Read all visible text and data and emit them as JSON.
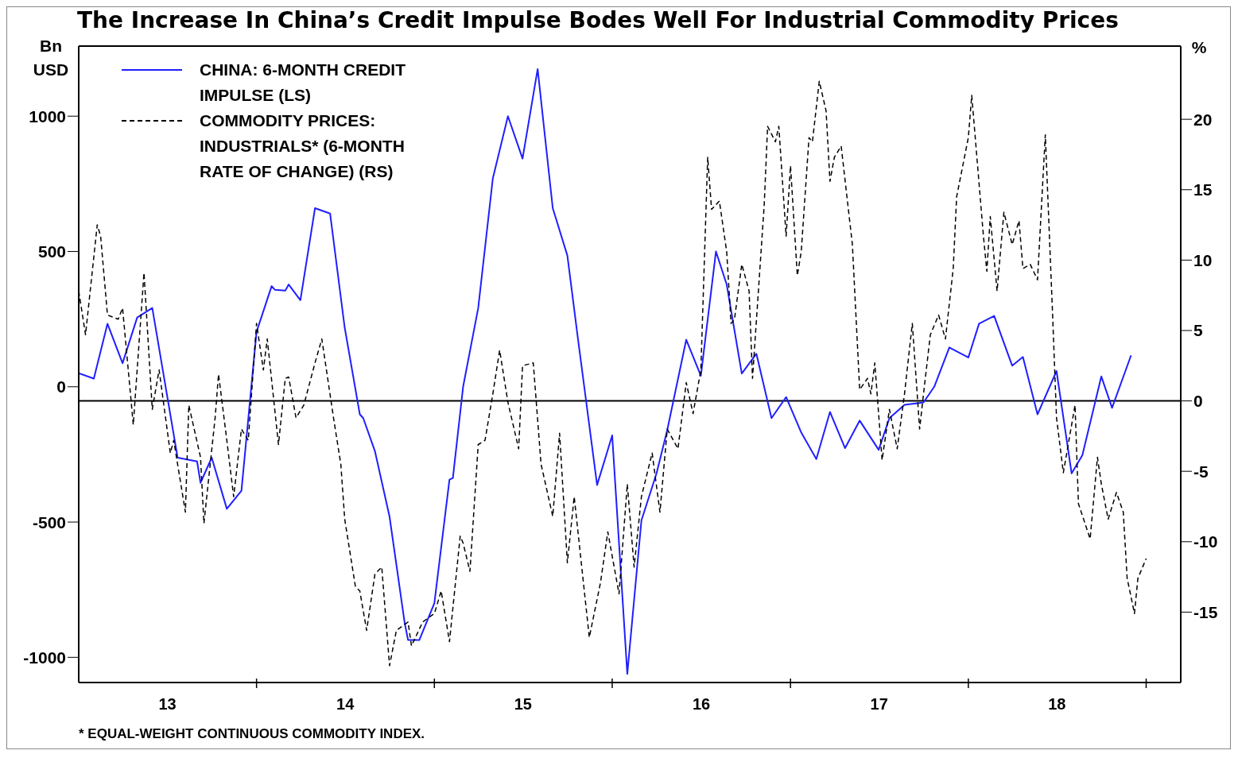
{
  "chart_data": {
    "type": "line",
    "title": "The Increase In China’s Credit Impulse Bodes Well For Industrial Commodity Prices",
    "ylabel": "Bn USD",
    "y2label": "%",
    "annotations": [
      "* EQUAL-WEIGHT CONTINUOUS COMMODITY INDEX."
    ],
    "xlim": [
      "2013-01-01",
      "2019-03-13"
    ],
    "xticks": [
      {
        "value": "2013-07-02",
        "label": "13"
      },
      {
        "value": "2014-01-01",
        "label": null
      },
      {
        "value": "2014-07-02",
        "label": "14"
      },
      {
        "value": "2015-01-01",
        "label": null
      },
      {
        "value": "2015-07-02",
        "label": "15"
      },
      {
        "value": "2016-01-01",
        "label": null
      },
      {
        "value": "2016-07-02",
        "label": "16"
      },
      {
        "value": "2017-01-01",
        "label": null
      },
      {
        "value": "2017-07-02",
        "label": "17"
      },
      {
        "value": "2018-01-01",
        "label": null
      },
      {
        "value": "2018-07-02",
        "label": "18"
      },
      {
        "value": "2019-01-01",
        "label": null
      }
    ],
    "ylim": [
      -1093,
      1259
    ],
    "yticks": [
      -1000,
      -500,
      0,
      500,
      1000
    ],
    "y2lim": [
      -20,
      25.2
    ],
    "y2ticks": [
      -15,
      -10,
      -5,
      0,
      5,
      10,
      15,
      20
    ],
    "ref_lines": [
      {
        "axis": "y2",
        "value": 0,
        "color": "#000000"
      }
    ],
    "legend": "top left",
    "marker": "none",
    "grid": false,
    "series": [
      {
        "name": "CHINA: 6-MONTH CREDIT IMPULSE (LS)",
        "color": "#1f1fff",
        "line_style": "solid",
        "axis": "y",
        "x": [
          "2013-01-01",
          "2013-02-01",
          "2013-03-01",
          "2013-04-01",
          "2013-05-01",
          "2013-06-01",
          "2013-07-23",
          "2013-09-01",
          "2013-09-08",
          "2013-10-01",
          "2013-11-01",
          "2013-12-01",
          "2014-01-01",
          "2014-02-01",
          "2014-02-08",
          "2014-03-01",
          "2014-03-08",
          "2014-04-01",
          "2014-05-01",
          "2014-06-01",
          "2014-07-01",
          "2014-08-01",
          "2014-08-08",
          "2014-09-01",
          "2014-10-01",
          "2014-11-01",
          "2014-11-08",
          "2014-12-01",
          "2015-01-01",
          "2015-02-01",
          "2015-02-08",
          "2015-03-01",
          "2015-04-01",
          "2015-05-01",
          "2015-06-01",
          "2015-07-01",
          "2015-08-01",
          "2015-09-01",
          "2015-10-01",
          "2015-10-23",
          "2015-12-01",
          "2016-01-01",
          "2016-02-01",
          "2016-03-01",
          "2016-04-01",
          "2016-04-23",
          "2016-06-01",
          "2016-07-01",
          "2016-08-01",
          "2016-08-23",
          "2016-09-23",
          "2016-10-23",
          "2016-11-23",
          "2016-12-23",
          "2017-01-23",
          "2017-02-23",
          "2017-03-23",
          "2017-04-23",
          "2017-05-23",
          "2017-07-01",
          "2017-07-23",
          "2017-08-23",
          "2017-10-01",
          "2017-10-23",
          "2017-11-23",
          "2018-01-01",
          "2018-01-23",
          "2018-02-23",
          "2018-04-01",
          "2018-04-23",
          "2018-05-23",
          "2018-07-01",
          "2018-08-01",
          "2018-08-23",
          "2018-10-01",
          "2018-10-23",
          "2018-12-01"
        ],
        "values": [
          50,
          30,
          233,
          87,
          256,
          291,
          -262,
          -276,
          -355,
          -262,
          -451,
          -384,
          203,
          372,
          358,
          355,
          378,
          320,
          660,
          640,
          218,
          -102,
          -116,
          -238,
          -480,
          -872,
          -936,
          -936,
          -800,
          -343,
          -337,
          0,
          291,
          770,
          1000,
          843,
          1174,
          660,
          485,
          174,
          -363,
          -180,
          -1061,
          -494,
          -320,
          -160,
          174,
          41,
          500,
          378,
          49,
          122,
          -116,
          -38,
          -169,
          -267,
          -93,
          -227,
          -125,
          -233,
          -116,
          -67,
          -58,
          0,
          145,
          108,
          233,
          262,
          78,
          110,
          -102,
          58,
          -320,
          -253,
          38,
          -78,
          116
        ]
      },
      {
        "name": "COMMODITY PRICES: INDUSTRIALS* (6-MONTH RATE OF CHANGE) (RS)",
        "color": "#000000",
        "line_style": "dashed",
        "axis": "y2",
        "x": [
          "2013-01-01",
          "2013-01-15",
          "2013-02-08",
          "2013-02-15",
          "2013-03-01",
          "2013-03-23",
          "2013-04-01",
          "2013-04-23",
          "2013-05-15",
          "2013-06-01",
          "2013-06-15",
          "2013-07-08",
          "2013-07-15",
          "2013-08-08",
          "2013-08-15",
          "2013-09-08",
          "2013-09-15",
          "2013-10-08",
          "2013-10-15",
          "2013-11-01",
          "2013-11-15",
          "2013-12-01",
          "2013-12-15",
          "2014-01-01",
          "2014-01-15",
          "2014-01-23",
          "2014-02-15",
          "2014-03-01",
          "2014-03-08",
          "2014-03-23",
          "2014-04-08",
          "2014-05-01",
          "2014-05-15",
          "2014-06-08",
          "2014-06-23",
          "2014-07-01",
          "2014-07-23",
          "2014-08-01",
          "2014-08-15",
          "2014-09-01",
          "2014-09-15",
          "2014-10-01",
          "2014-10-15",
          "2014-11-08",
          "2014-11-15",
          "2014-12-08",
          "2015-01-01",
          "2015-01-15",
          "2015-02-01",
          "2015-02-23",
          "2015-03-01",
          "2015-03-15",
          "2015-04-01",
          "2015-04-15",
          "2015-05-01",
          "2015-05-15",
          "2015-06-01",
          "2015-06-23",
          "2015-07-01",
          "2015-07-23",
          "2015-08-08",
          "2015-09-01",
          "2015-09-15",
          "2015-10-01",
          "2015-10-15",
          "2015-11-15",
          "2015-12-08",
          "2015-12-23",
          "2016-01-15",
          "2016-02-01",
          "2016-02-15",
          "2016-03-01",
          "2016-03-23",
          "2016-04-08",
          "2016-04-23",
          "2016-05-15",
          "2016-06-01",
          "2016-06-15",
          "2016-07-01",
          "2016-07-15",
          "2016-07-23",
          "2016-08-08",
          "2016-08-23",
          "2016-09-01",
          "2016-09-08",
          "2016-09-23",
          "2016-10-08",
          "2016-10-15",
          "2016-11-08",
          "2016-11-15",
          "2016-12-01",
          "2016-12-08",
          "2016-12-23",
          "2017-01-01",
          "2017-01-15",
          "2017-01-23",
          "2017-02-08",
          "2017-02-15",
          "2017-03-01",
          "2017-03-15",
          "2017-03-23",
          "2017-04-01",
          "2017-04-15",
          "2017-05-08",
          "2017-05-23",
          "2017-06-08",
          "2017-06-15",
          "2017-06-23",
          "2017-07-08",
          "2017-07-23",
          "2017-08-08",
          "2017-08-23",
          "2017-09-08",
          "2017-09-23",
          "2017-10-01",
          "2017-10-15",
          "2017-11-01",
          "2017-11-15",
          "2017-12-01",
          "2017-12-08",
          "2018-01-01",
          "2018-01-08",
          "2018-02-01",
          "2018-02-08",
          "2018-02-15",
          "2018-03-01",
          "2018-03-15",
          "2018-04-01",
          "2018-04-15",
          "2018-04-23",
          "2018-05-08",
          "2018-05-23",
          "2018-06-08",
          "2018-06-23",
          "2018-07-01",
          "2018-07-15",
          "2018-08-08",
          "2018-08-15",
          "2018-09-08",
          "2018-09-23",
          "2018-10-01",
          "2018-10-15",
          "2018-11-01",
          "2018-11-15",
          "2018-11-23",
          "2018-12-08",
          "2018-12-15",
          "2019-01-01"
        ],
        "values": [
          7.8,
          4.7,
          12.5,
          11.7,
          6.1,
          5.8,
          6.6,
          -1.7,
          9.1,
          -0.6,
          2.2,
          -3.7,
          -2.8,
          -7.9,
          -0.3,
          -4.0,
          -8.7,
          -1.2,
          1.9,
          -2.8,
          -6.8,
          -2.0,
          -2.8,
          5.5,
          2.2,
          4.4,
          -3.1,
          1.6,
          1.7,
          -1.2,
          -0.3,
          2.7,
          4.4,
          -1.2,
          -4.5,
          -8.4,
          -13.2,
          -13.5,
          -16.3,
          -12.3,
          -11.8,
          -18.8,
          -16.3,
          -15.7,
          -17.4,
          -15.7,
          -15.1,
          -13.5,
          -17.1,
          -9.6,
          -10.1,
          -12.1,
          -3.1,
          -2.8,
          0.5,
          3.6,
          -0.1,
          -3.4,
          2.5,
          2.7,
          -4.5,
          -8.2,
          -2.3,
          -11.5,
          -6.8,
          -16.8,
          -12.9,
          -9.3,
          -13.7,
          -5.9,
          -11.8,
          -6.8,
          -3.7,
          -7.9,
          -2.0,
          -3.4,
          1.3,
          -0.9,
          2.2,
          17.3,
          13.6,
          14.2,
          10.6,
          5.5,
          5.8,
          9.7,
          7.8,
          1.6,
          13.9,
          19.5,
          18.4,
          19.5,
          11.7,
          16.7,
          8.9,
          10.6,
          18.7,
          18.4,
          22.7,
          20.6,
          15.6,
          17.3,
          18.1,
          11.1,
          0.8,
          1.6,
          0.5,
          2.7,
          -4.2,
          -0.6,
          -3.4,
          0.5,
          5.5,
          -2.0,
          0.5,
          4.7,
          6.1,
          4.4,
          9.4,
          14.5,
          18.7,
          21.7,
          11.7,
          9.2,
          13.1,
          7.8,
          13.4,
          11.1,
          12.8,
          9.4,
          9.7,
          8.6,
          18.9,
          6.1,
          -1.2,
          -5.1,
          -0.3,
          -7.3,
          -9.8,
          -4.0,
          -5.9,
          -8.4,
          -6.5,
          -7.9,
          -12.6,
          -15.1,
          -12.6,
          -11.2
        ]
      }
    ]
  }
}
